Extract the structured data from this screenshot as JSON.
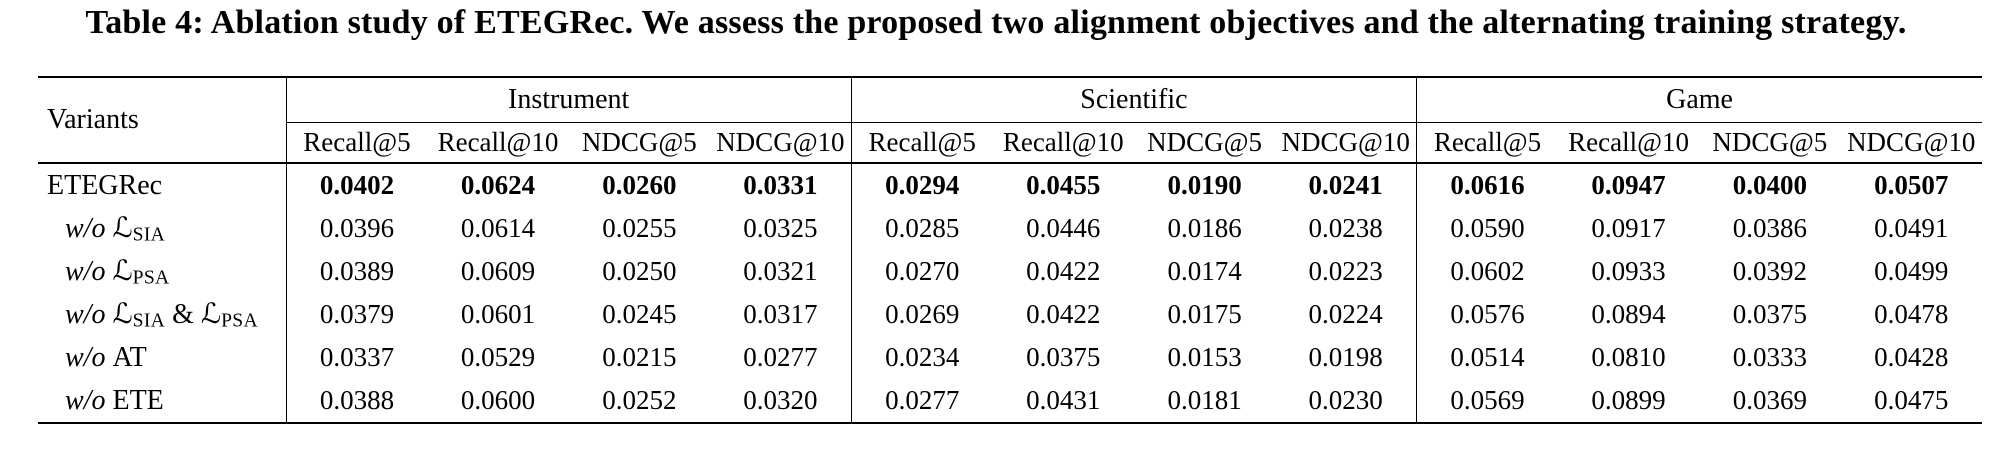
{
  "caption": "Table 4: Ablation study of ETEGRec. We assess the proposed two alignment objectives and the alternating training strategy.",
  "colors": {
    "background": "#ffffff",
    "text": "#000000",
    "rule": "#000000"
  },
  "table": {
    "row_header": "Variants",
    "groups": [
      {
        "label": "Instrument",
        "metrics": [
          "Recall@5",
          "Recall@10",
          "NDCG@5",
          "NDCG@10"
        ]
      },
      {
        "label": "Scientific",
        "metrics": [
          "Recall@5",
          "Recall@10",
          "NDCG@5",
          "NDCG@10"
        ]
      },
      {
        "label": "Game",
        "metrics": [
          "Recall@5",
          "Recall@10",
          "NDCG@5",
          "NDCG@10"
        ]
      }
    ],
    "rows": [
      {
        "name": "ETEGRec",
        "highlight": true,
        "indent": false,
        "tokens": [
          {
            "t": "ETEGRec"
          }
        ],
        "values": [
          "0.0402",
          "0.0624",
          "0.0260",
          "0.0331",
          "0.0294",
          "0.0455",
          "0.0190",
          "0.0241",
          "0.0616",
          "0.0947",
          "0.0400",
          "0.0507"
        ]
      },
      {
        "name": "w/o L_SIA",
        "highlight": false,
        "indent": true,
        "tokens": [
          {
            "t": "w/o ",
            "it": true
          },
          {
            "t": "ℒ",
            "scr": true
          },
          {
            "t": "SIA",
            "sub": true
          }
        ],
        "values": [
          "0.0396",
          "0.0614",
          "0.0255",
          "0.0325",
          "0.0285",
          "0.0446",
          "0.0186",
          "0.0238",
          "0.0590",
          "0.0917",
          "0.0386",
          "0.0491"
        ]
      },
      {
        "name": "w/o L_PSA",
        "highlight": false,
        "indent": true,
        "tokens": [
          {
            "t": "w/o ",
            "it": true
          },
          {
            "t": "ℒ",
            "scr": true
          },
          {
            "t": "PSA",
            "sub": true
          }
        ],
        "values": [
          "0.0389",
          "0.0609",
          "0.0250",
          "0.0321",
          "0.0270",
          "0.0422",
          "0.0174",
          "0.0223",
          "0.0602",
          "0.0933",
          "0.0392",
          "0.0499"
        ]
      },
      {
        "name": "w/o L_SIA & L_PSA",
        "highlight": false,
        "indent": true,
        "tokens": [
          {
            "t": "w/o ",
            "it": true
          },
          {
            "t": "ℒ",
            "scr": true
          },
          {
            "t": "SIA",
            "sub": true
          },
          {
            "t": " & "
          },
          {
            "t": "ℒ",
            "scr": true
          },
          {
            "t": "PSA",
            "sub": true
          }
        ],
        "values": [
          "0.0379",
          "0.0601",
          "0.0245",
          "0.0317",
          "0.0269",
          "0.0422",
          "0.0175",
          "0.0224",
          "0.0576",
          "0.0894",
          "0.0375",
          "0.0478"
        ]
      },
      {
        "name": "w/o AT",
        "highlight": false,
        "indent": true,
        "tokens": [
          {
            "t": "w/o ",
            "it": true
          },
          {
            "t": "AT"
          }
        ],
        "values": [
          "0.0337",
          "0.0529",
          "0.0215",
          "0.0277",
          "0.0234",
          "0.0375",
          "0.0153",
          "0.0198",
          "0.0514",
          "0.0810",
          "0.0333",
          "0.0428"
        ]
      },
      {
        "name": "w/o ETE",
        "highlight": false,
        "indent": true,
        "tokens": [
          {
            "t": "w/o ",
            "it": true
          },
          {
            "t": "ETE"
          }
        ],
        "values": [
          "0.0388",
          "0.0600",
          "0.0252",
          "0.0320",
          "0.0277",
          "0.0431",
          "0.0181",
          "0.0230",
          "0.0569",
          "0.0899",
          "0.0369",
          "0.0475"
        ]
      }
    ]
  }
}
